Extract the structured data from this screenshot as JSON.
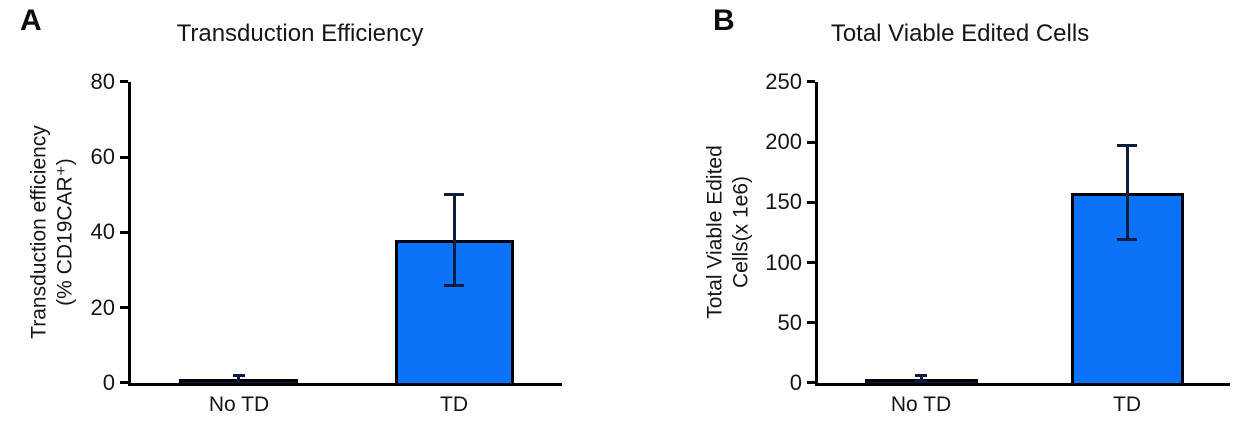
{
  "panels": [
    {
      "label": "A"
    },
    {
      "label": "B"
    }
  ],
  "chart_data": [
    {
      "type": "bar",
      "title": "Transduction Efficiency",
      "ylabel_lines": [
        "Transduction efficiency",
        "(% CD19CAR⁺)"
      ],
      "xlabel": "",
      "categories": [
        "No TD",
        "TD"
      ],
      "values": [
        0.9,
        38
      ],
      "errors": [
        1,
        12
      ],
      "yticks": [
        0,
        20,
        40,
        60,
        80
      ],
      "ylim": [
        0,
        80
      ],
      "grid": false,
      "legend": "none",
      "bar_colors": [
        "#141f47",
        "#0a73f8"
      ],
      "bar_edge_color": "#000000",
      "error_bar_color": "#0e1c3f"
    },
    {
      "type": "bar",
      "title": "Total Viable Edited Cells",
      "ylabel_lines": [
        "Total Viable Edited",
        "Cells(x 1e6)"
      ],
      "xlabel": "",
      "categories": [
        "No TD",
        "TD"
      ],
      "values": [
        3.5,
        158
      ],
      "errors": [
        2.5,
        39
      ],
      "yticks": [
        0,
        50,
        100,
        150,
        200,
        250
      ],
      "ylim": [
        0,
        250
      ],
      "grid": false,
      "legend": "none",
      "bar_colors": [
        "#141f47",
        "#0a73f8"
      ],
      "bar_edge_color": "#000000",
      "error_bar_color": "#0e1c3f"
    }
  ]
}
